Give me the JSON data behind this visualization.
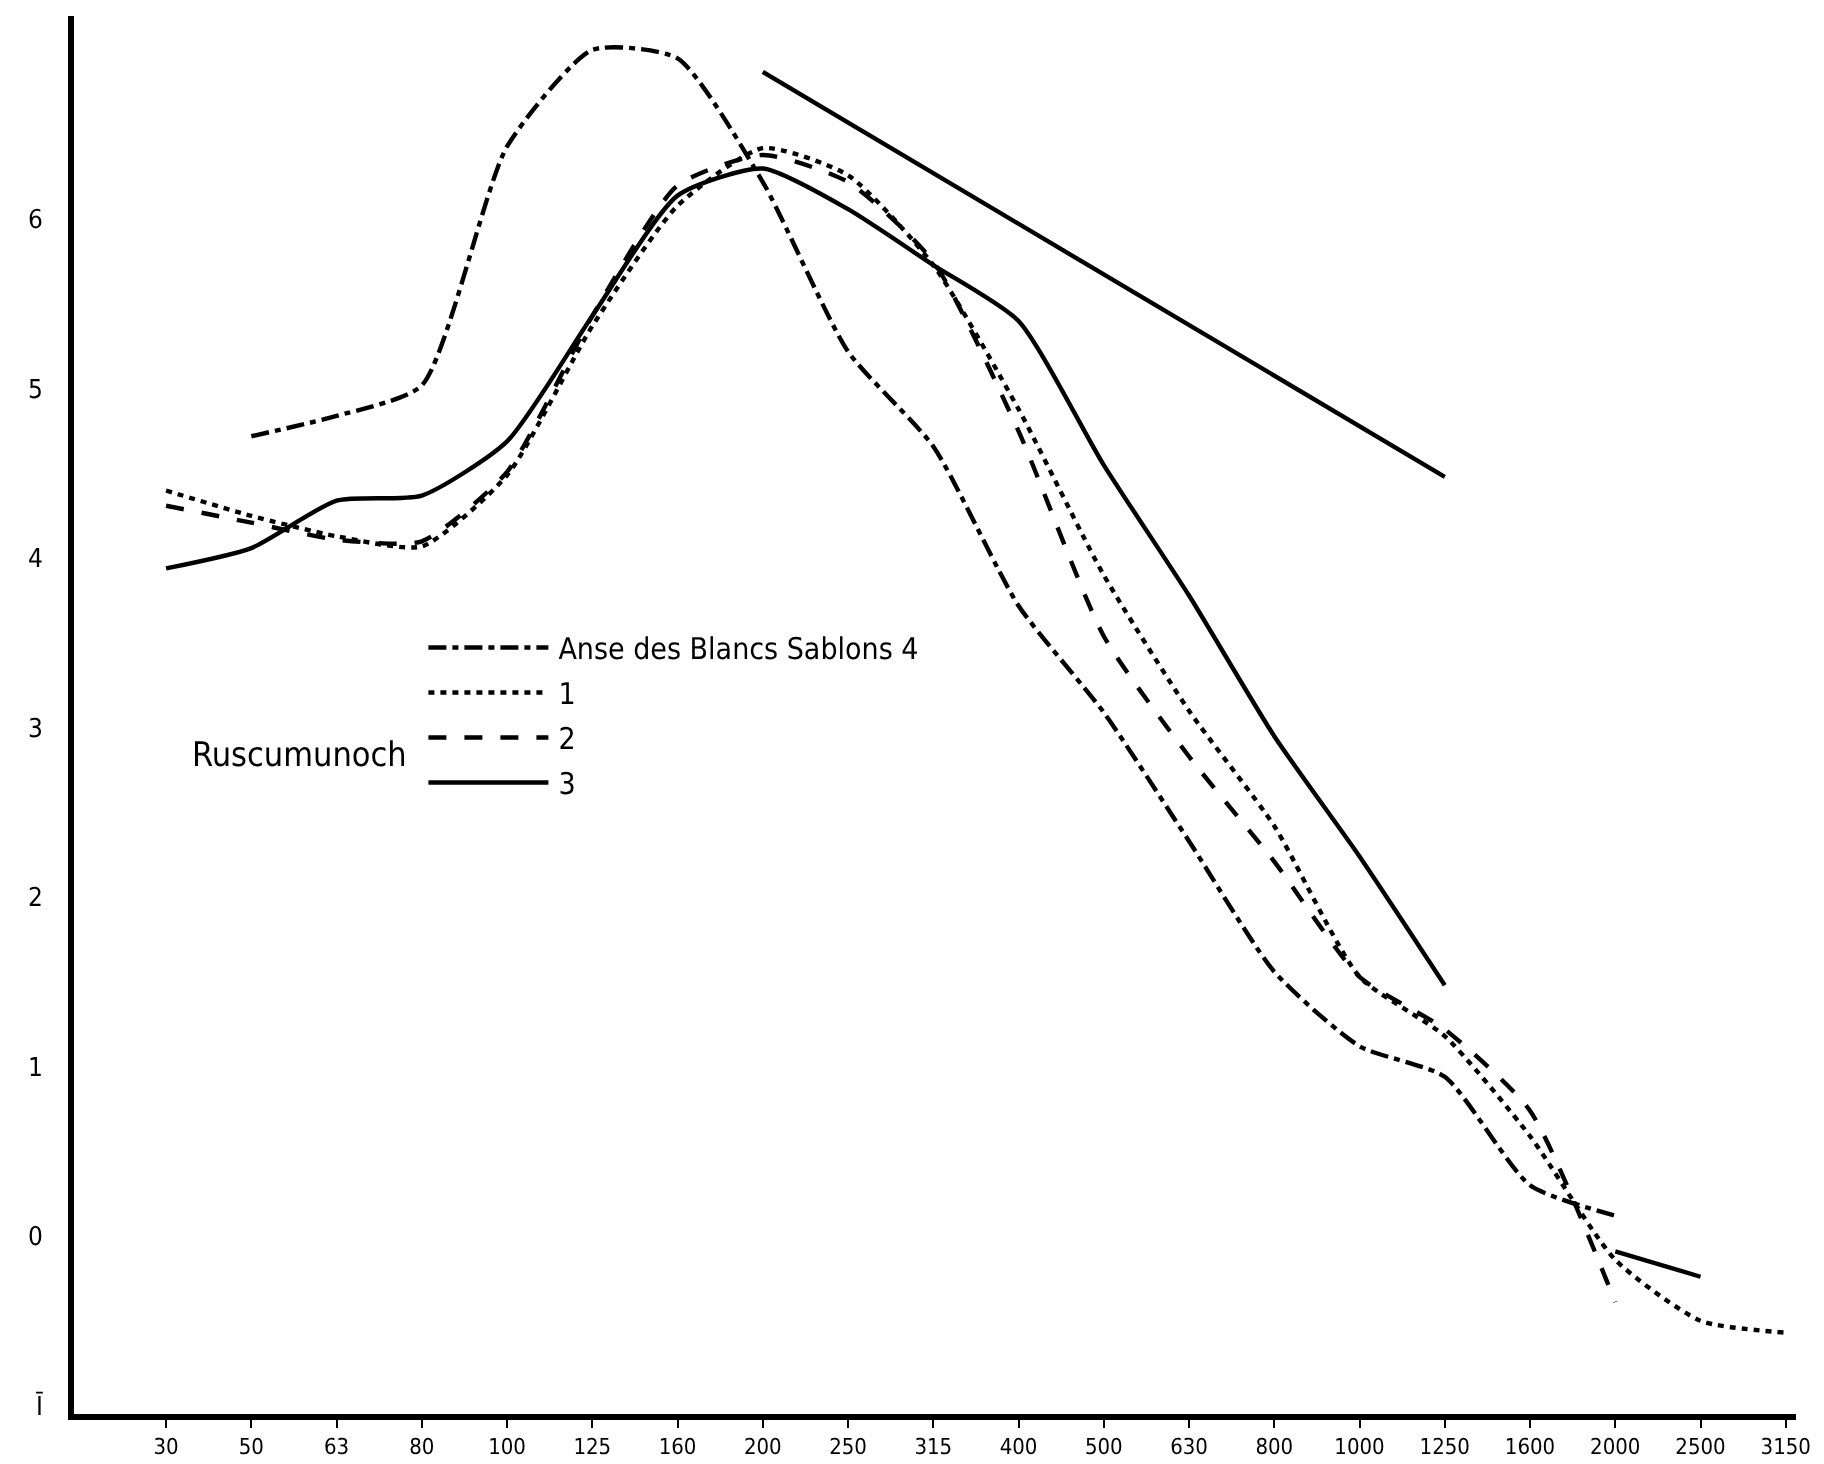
{
  "chart_data": {
    "type": "line",
    "categories": [
      "30",
      "50",
      "63",
      "80",
      "100",
      "125",
      "160",
      "200",
      "250",
      "315",
      "400",
      "500",
      "630",
      "800",
      "1000",
      "1250",
      "1600",
      "2000",
      "2500",
      "3150"
    ],
    "series": [
      {
        "name": "Anse des Blancs Sablons 4",
        "color": "#000000",
        "line_style": "dashdot",
        "values": [
          null,
          4.72,
          4.84,
          5.02,
          6.43,
          7.0,
          6.95,
          6.22,
          5.22,
          4.66,
          3.72,
          3.09,
          2.33,
          1.56,
          1.12,
          0.94,
          0.3,
          0.12,
          null,
          null
        ]
      },
      {
        "name": "1",
        "color": "#000000",
        "line_style": "dotted",
        "values": [
          4.4,
          4.25,
          4.13,
          4.07,
          4.49,
          5.37,
          6.08,
          6.42,
          6.26,
          5.73,
          4.88,
          3.9,
          3.1,
          2.42,
          1.53,
          1.18,
          0.59,
          -0.14,
          -0.5,
          -0.57
        ]
      },
      {
        "name": "2",
        "color": "#000000",
        "line_style": "dashed",
        "values": [
          4.31,
          4.21,
          4.11,
          4.1,
          4.51,
          5.43,
          6.2,
          6.38,
          6.22,
          5.75,
          4.75,
          3.54,
          2.83,
          2.21,
          1.53,
          1.22,
          0.74,
          -0.39,
          null,
          null
        ]
      },
      {
        "name": "3",
        "color": "#000000",
        "line_style": "solid",
        "values": [
          3.94,
          4.06,
          4.34,
          4.37,
          4.69,
          5.43,
          6.14,
          6.3,
          6.06,
          5.73,
          5.4,
          4.55,
          3.78,
          2.95,
          2.24,
          1.48,
          null,
          -0.09,
          -0.24,
          null
        ]
      },
      {
        "color": "#000000",
        "line_style": "solid",
        "values": [
          null,
          null,
          null,
          null,
          null,
          null,
          null,
          6.87,
          null,
          null,
          null,
          null,
          null,
          null,
          null,
          4.48,
          null,
          null,
          null,
          null
        ]
      }
    ],
    "ylim": [
      -1.05,
      7.2
    ],
    "yticks": [
      {
        "value": -1,
        "label": "Ī"
      },
      0,
      1,
      2,
      3,
      4,
      5,
      6
    ],
    "annotations": [
      "Ruscumunoch"
    ],
    "legend": "left",
    "grid": false,
    "marker": "none"
  }
}
